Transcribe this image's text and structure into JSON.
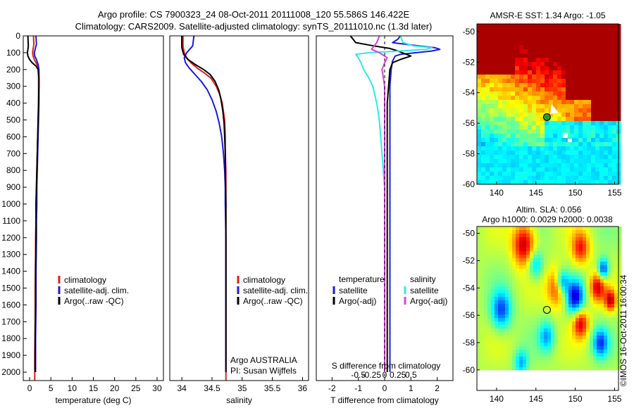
{
  "header": {
    "title_line1": "Argo profile: CS 7900323_24 08-Oct-2011 20111008_120 55.586S 146.422E",
    "title_line2": "Climatology: CARS2009. Satellite-adjusted climatology: synTS_20111010.nc (1.3d later)"
  },
  "colors": {
    "climatology": "#e0201a",
    "satellite": "#1a1ae0",
    "argo": "#000000",
    "satellite_s": "#30e8e8",
    "argo_s": "#e040e0"
  },
  "chart_data": [
    {
      "type": "line",
      "id": "temperature",
      "xlabel": "temperature (deg C)",
      "ylabel": "",
      "xlim": [
        -1.5,
        31.5
      ],
      "ylim": [
        2050,
        0
      ],
      "xticks": [
        0,
        5,
        10,
        15,
        20,
        25,
        30
      ],
      "yticks": [
        0,
        100,
        200,
        300,
        400,
        500,
        600,
        700,
        800,
        900,
        1000,
        1100,
        1200,
        1300,
        1400,
        1500,
        1600,
        1700,
        1800,
        1900,
        2000
      ],
      "legend": [
        "climatology",
        "satellite-adj. clim.",
        "Argo(..raw -QC)"
      ],
      "legend_position": "lower-center",
      "series": [
        {
          "name": "climatology",
          "color": "#e0201a",
          "x": [
            0.9,
            1.0,
            0.8,
            0.7,
            0.8,
            1.1,
            1.7,
            2.0,
            2.1,
            2.1,
            2.1,
            2.0,
            1.9,
            1.8,
            1.7,
            1.6,
            1.5,
            1.5,
            1.4,
            1.4,
            1.3,
            1.3,
            1.2,
            1.2,
            1.2
          ],
          "y": [
            0,
            50,
            80,
            100,
            120,
            140,
            170,
            200,
            250,
            300,
            400,
            500,
            600,
            700,
            800,
            900,
            1000,
            1100,
            1200,
            1300,
            1500,
            1700,
            1900,
            2000,
            2050
          ]
        },
        {
          "name": "satellite-adj. clim.",
          "color": "#1a1ae0",
          "x": [
            1.5,
            1.6,
            1.3,
            1.1,
            1.2,
            1.6,
            2.0,
            2.2,
            2.2,
            2.2,
            2.2,
            2.1,
            2.0,
            1.9,
            1.8,
            1.7,
            1.7,
            1.6,
            1.6,
            1.5,
            1.5,
            1.4,
            1.4
          ],
          "y": [
            0,
            50,
            80,
            100,
            120,
            140,
            170,
            200,
            250,
            300,
            400,
            500,
            600,
            700,
            800,
            900,
            1000,
            1100,
            1200,
            1400,
            1600,
            1800,
            2000
          ]
        },
        {
          "name": "Argo(..raw -QC)",
          "color": "#000000",
          "x": [
            -0.4,
            -0.3,
            -0.5,
            -0.4,
            0.0,
            0.6,
            1.5,
            2.0,
            2.2,
            2.2,
            2.1,
            2.0,
            1.9,
            1.8,
            1.7,
            1.6,
            1.5,
            1.5,
            1.4,
            1.4,
            1.3,
            1.3
          ],
          "y": [
            0,
            60,
            100,
            120,
            140,
            160,
            180,
            200,
            250,
            300,
            400,
            500,
            600,
            700,
            800,
            900,
            1000,
            1200,
            1400,
            1600,
            1800,
            2000
          ]
        }
      ]
    },
    {
      "type": "line",
      "id": "salinity",
      "xlabel": "salinity",
      "ylabel": "",
      "xlim": [
        33.8,
        36.1
      ],
      "ylim": [
        2050,
        0
      ],
      "xticks": [
        34,
        34.5,
        35,
        35.5,
        36
      ],
      "legend": [
        "climatology",
        "satellite-adj. clim.",
        "Argo(..raw -QC)"
      ],
      "legend_position": "lower-right",
      "annotation": [
        "Argo AUSTRALIA",
        "PI: Susan Wijffels"
      ],
      "series": [
        {
          "name": "climatology",
          "color": "#e0201a",
          "x": [
            34.02,
            34.02,
            34.04,
            34.08,
            34.15,
            34.25,
            34.37,
            34.48,
            34.57,
            34.63,
            34.67,
            34.69,
            34.71,
            34.72,
            34.72,
            34.73,
            34.73,
            34.73,
            34.73,
            34.73,
            34.73,
            34.73
          ],
          "y": [
            0,
            60,
            100,
            130,
            160,
            190,
            220,
            250,
            300,
            350,
            400,
            450,
            500,
            600,
            700,
            800,
            1000,
            1200,
            1400,
            1600,
            1800,
            2050
          ]
        },
        {
          "name": "satellite-adj. clim.",
          "color": "#1a1ae0",
          "x": [
            34.2,
            34.18,
            34.08,
            34.04,
            34.06,
            34.12,
            34.22,
            34.32,
            34.42,
            34.5,
            34.57,
            34.62,
            34.66,
            34.69,
            34.71,
            34.72,
            34.72,
            34.73,
            34.73,
            34.73
          ],
          "y": [
            0,
            60,
            100,
            130,
            160,
            190,
            230,
            270,
            320,
            380,
            450,
            520,
            600,
            700,
            800,
            900,
            1000,
            1200,
            1600,
            2000
          ]
        },
        {
          "name": "Argo(..raw -QC)",
          "color": "#000000",
          "x": [
            34.0,
            34.0,
            34.03,
            34.1,
            34.22,
            34.36,
            34.47,
            34.55,
            34.61,
            34.65,
            34.68,
            34.7,
            34.71,
            34.72,
            34.72,
            34.73,
            34.73,
            34.73
          ],
          "y": [
            0,
            70,
            110,
            140,
            170,
            200,
            230,
            270,
            320,
            380,
            450,
            520,
            600,
            700,
            800,
            1000,
            1400,
            2000
          ]
        }
      ]
    },
    {
      "type": "line",
      "id": "difference",
      "xlabel": "T difference from climatology",
      "xlabel2": "S difference from climatology",
      "xlim": [
        -2.6,
        2.6
      ],
      "ylim": [
        2050,
        0
      ],
      "xticks": [
        -2,
        -1,
        0,
        1,
        2
      ],
      "xticks_s": [
        -0.5,
        -0.25,
        0,
        0.25,
        0.5
      ],
      "legend_headers": [
        "temperature",
        "salinity"
      ],
      "legend": [
        "satellite",
        "Argo(-adj)",
        "satellite",
        "Argo(-adj)"
      ],
      "legend_position": "lower-center",
      "series": [
        {
          "name": "satellite",
          "group": "temperature",
          "color": "#1a1ae0",
          "x": [
            0.6,
            0.5,
            0.3,
            1.3,
            1.9,
            2.1,
            1.8,
            1.2,
            0.6,
            0.4,
            0.3,
            0.25,
            0.2,
            0.2,
            0.2,
            0.2,
            0.2,
            0.2,
            0.2,
            0.2,
            0.2
          ],
          "y": [
            0,
            20,
            40,
            60,
            70,
            80,
            90,
            100,
            110,
            120,
            150,
            200,
            300,
            400,
            600,
            800,
            1000,
            1200,
            1500,
            1800,
            2000
          ]
        },
        {
          "name": "Argo(-adj)",
          "group": "temperature",
          "color": "#000000",
          "x": [
            -1.3,
            -1.1,
            -0.4,
            0.2,
            0.5,
            1.0,
            0.6,
            0.3,
            0.2,
            0.15,
            0.1,
            0.1,
            0.1,
            0.1,
            0.1,
            0.1,
            0.1
          ],
          "y": [
            0,
            40,
            60,
            75,
            90,
            120,
            140,
            160,
            200,
            300,
            400,
            600,
            800,
            1000,
            1400,
            1800,
            2000
          ]
        },
        {
          "name": "satellite",
          "group": "salinity",
          "color": "#30e8e8",
          "x": [
            0.6,
            0.7,
            1.1,
            1.8,
            1.6,
            0.6,
            -0.6,
            -1.1,
            -1.0,
            -0.9,
            -0.8,
            -0.6,
            -0.45,
            -0.3,
            -0.2,
            -0.1,
            0.0,
            0.0,
            0.0
          ],
          "y": [
            0,
            40,
            60,
            70,
            80,
            90,
            100,
            110,
            130,
            160,
            200,
            250,
            300,
            400,
            500,
            700,
            900,
            1400,
            2000
          ]
        },
        {
          "name": "Argo(-adj)",
          "group": "salinity",
          "color": "#e040e0",
          "x": [
            -0.2,
            -0.3,
            -0.5,
            -0.2,
            0.1,
            0.0,
            -0.1,
            0.0,
            0.0,
            0.0,
            0.0,
            0.0
          ],
          "y": [
            0,
            40,
            80,
            100,
            130,
            160,
            200,
            300,
            500,
            800,
            1200,
            2000
          ]
        }
      ]
    },
    {
      "type": "heatmap",
      "id": "sst_map",
      "title": "AMSR-E SST: 1.34  Argo: -1.05",
      "xlim": [
        137.5,
        155.5
      ],
      "ylim": [
        -60,
        -49.5
      ],
      "xticks": [
        140,
        145,
        150,
        155
      ],
      "yticks": [
        -50,
        -52,
        -54,
        -56,
        -58,
        -60
      ],
      "marker": {
        "lon": 146.4,
        "lat": -55.6
      }
    },
    {
      "type": "heatmap",
      "id": "sla_map",
      "title": "Altim. SLA: 0.056",
      "subtitle": "Argo h1000: 0.0029 h2000: 0.0038",
      "xlim": [
        137.5,
        155.5
      ],
      "ylim": [
        -61.5,
        -49.5
      ],
      "xticks": [
        140,
        145,
        150,
        155
      ],
      "yticks": [
        -50,
        -52,
        -54,
        -56,
        -58,
        -60
      ],
      "marker": {
        "lon": 146.4,
        "lat": -55.6
      }
    }
  ],
  "footer": {
    "credit": "©IMOS 16-Oct-2011 16:00:34"
  }
}
